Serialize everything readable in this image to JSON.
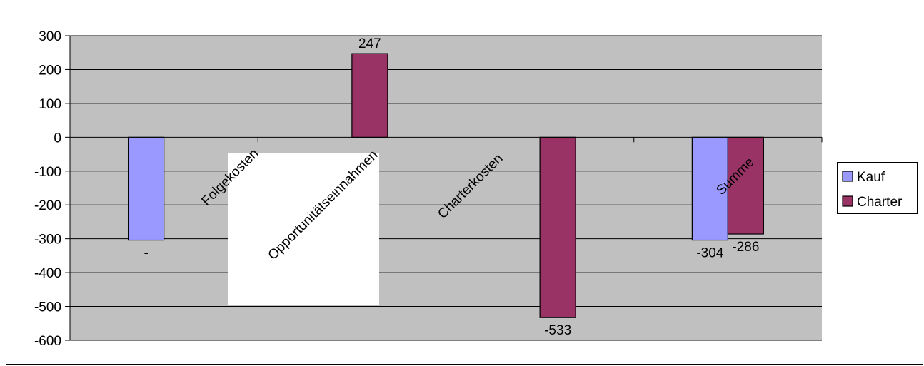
{
  "chart_data": {
    "type": "bar",
    "categories": [
      "Folgekosten",
      "Opportunitätseinnahmen",
      "Charterkosten",
      "Summe"
    ],
    "series": [
      {
        "name": "Kauf",
        "color": "#9999FF",
        "values": [
          -304,
          null,
          null,
          -304
        ]
      },
      {
        "name": "Charter",
        "color": "#993366",
        "values": [
          null,
          247,
          -533,
          -286
        ]
      }
    ],
    "data_labels": [
      {
        "series": "Kauf",
        "category": "Folgekosten",
        "text": "-"
      },
      {
        "series": "Charter",
        "category": "Opportunitätseinnahmen",
        "text": "247"
      },
      {
        "series": "Charter",
        "category": "Charterkosten",
        "text": "-533"
      },
      {
        "series": "Kauf",
        "category": "Summe",
        "text": "-304"
      },
      {
        "series": "Charter",
        "category": "Summe",
        "text": "-286"
      }
    ],
    "ylim": [
      -600,
      300
    ],
    "yticks": [
      300,
      200,
      100,
      0,
      -100,
      -200,
      -300,
      -400,
      -500,
      -600
    ],
    "grid": true,
    "plot_background": "#C0C0C0",
    "legend_position": "right",
    "title": "",
    "xlabel": "",
    "ylabel": ""
  }
}
